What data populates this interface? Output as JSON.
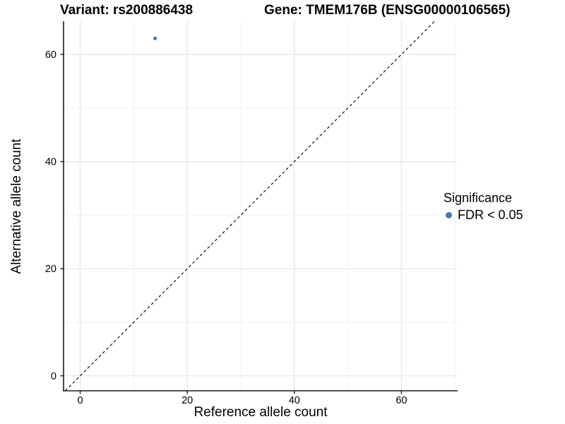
{
  "chart_data": {
    "type": "scatter",
    "title_left": "Variant: rs200886438",
    "title_right": "Gene: TMEM176B (ENSG00000106565)",
    "xlabel": "Reference allele count",
    "ylabel": "Alternative allele count",
    "x_ticks": [
      0,
      20,
      40,
      60
    ],
    "y_ticks": [
      0,
      20,
      40,
      60
    ],
    "x_minor_ticks": [
      10,
      30,
      50,
      70
    ],
    "y_minor_ticks": [
      10,
      30,
      50
    ],
    "xlim": [
      -3.1,
      70.5
    ],
    "ylim": [
      -2.8,
      66.2
    ],
    "grid": true,
    "points": [
      {
        "x": 14,
        "y": 63,
        "significance": "FDR < 0.05"
      }
    ],
    "identity_line": {
      "slope": 1,
      "intercept": 0,
      "style": "dashed"
    },
    "legend": {
      "title": "Significance",
      "position": "right",
      "items": [
        {
          "label": "FDR < 0.05",
          "color": "#4a7aad"
        }
      ]
    },
    "colors": {
      "point": "#4a7aad",
      "grid_major": "#e6e6e6",
      "grid_minor": "#f2f2f2",
      "axis": "#1a1a1a",
      "dash_line": "#111111",
      "text": "#000000"
    }
  }
}
